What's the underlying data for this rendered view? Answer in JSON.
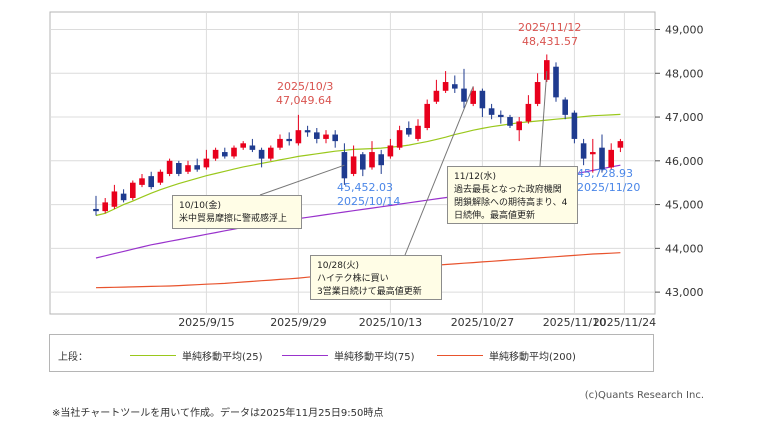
{
  "chart_data": {
    "type": "candlestick",
    "y_ticks": [
      43000,
      44000,
      45000,
      46000,
      47000,
      48000,
      49000
    ],
    "y_tick_labels": [
      "43,000",
      "44,000",
      "45,000",
      "46,000",
      "47,000",
      "48,000",
      "49,000"
    ],
    "ylim": [
      42500,
      49400
    ],
    "x_tick_labels": [
      "2025/9/15",
      "2025/9/29",
      "2025/10/13",
      "2025/10/27",
      "2025/11/10",
      "2025/11/24"
    ],
    "candles": [
      {
        "o": 44900,
        "c": 44850,
        "h": 45200,
        "l": 44750
      },
      {
        "o": 44850,
        "c": 45050,
        "h": 45150,
        "l": 44800
      },
      {
        "o": 44950,
        "c": 45300,
        "h": 45450,
        "l": 44900
      },
      {
        "o": 45250,
        "c": 45100,
        "h": 45350,
        "l": 45050
      },
      {
        "o": 45150,
        "c": 45500,
        "h": 45550,
        "l": 45100
      },
      {
        "o": 45450,
        "c": 45600,
        "h": 45700,
        "l": 45400
      },
      {
        "o": 45650,
        "c": 45400,
        "h": 45750,
        "l": 45350
      },
      {
        "o": 45500,
        "c": 45750,
        "h": 45800,
        "l": 45450
      },
      {
        "o": 45700,
        "c": 46000,
        "h": 46050,
        "l": 45650
      },
      {
        "o": 45950,
        "c": 45700,
        "h": 46000,
        "l": 45650
      },
      {
        "o": 45750,
        "c": 45900,
        "h": 46000,
        "l": 45700
      },
      {
        "o": 45900,
        "c": 45800,
        "h": 46050,
        "l": 45750
      },
      {
        "o": 45850,
        "c": 46050,
        "h": 46250,
        "l": 45800
      },
      {
        "o": 46050,
        "c": 46250,
        "h": 46300,
        "l": 46000
      },
      {
        "o": 46200,
        "c": 46100,
        "h": 46300,
        "l": 46050
      },
      {
        "o": 46100,
        "c": 46300,
        "h": 46350,
        "l": 46050
      },
      {
        "o": 46300,
        "c": 46400,
        "h": 46450,
        "l": 46250
      },
      {
        "o": 46350,
        "c": 46250,
        "h": 46500,
        "l": 46200
      },
      {
        "o": 46250,
        "c": 46050,
        "h": 46300,
        "l": 45850
      },
      {
        "o": 46050,
        "c": 46300,
        "h": 46350,
        "l": 46000
      },
      {
        "o": 46300,
        "c": 46500,
        "h": 46600,
        "l": 46250
      },
      {
        "o": 46500,
        "c": 46450,
        "h": 46650,
        "l": 46350
      },
      {
        "o": 46400,
        "c": 46700,
        "h": 47050,
        "l": 46350
      },
      {
        "o": 46700,
        "c": 46650,
        "h": 46800,
        "l": 46550
      },
      {
        "o": 46650,
        "c": 46500,
        "h": 46750,
        "l": 46400
      },
      {
        "o": 46500,
        "c": 46600,
        "h": 46700,
        "l": 46400
      },
      {
        "o": 46600,
        "c": 46450,
        "h": 46700,
        "l": 46300
      },
      {
        "o": 46200,
        "c": 45600,
        "h": 46400,
        "l": 45450
      },
      {
        "o": 45700,
        "c": 46100,
        "h": 46350,
        "l": 45650
      },
      {
        "o": 46150,
        "c": 45800,
        "h": 46200,
        "l": 45650
      },
      {
        "o": 45850,
        "c": 46200,
        "h": 46450,
        "l": 45800
      },
      {
        "o": 46150,
        "c": 45900,
        "h": 46250,
        "l": 45700
      },
      {
        "o": 46100,
        "c": 46350,
        "h": 46500,
        "l": 46050
      },
      {
        "o": 46300,
        "c": 46700,
        "h": 46800,
        "l": 46250
      },
      {
        "o": 46750,
        "c": 46600,
        "h": 46900,
        "l": 46550
      },
      {
        "o": 46500,
        "c": 46800,
        "h": 46950,
        "l": 46450
      },
      {
        "o": 46750,
        "c": 47300,
        "h": 47400,
        "l": 46700
      },
      {
        "o": 47350,
        "c": 47600,
        "h": 47850,
        "l": 47300
      },
      {
        "o": 47600,
        "c": 47800,
        "h": 48050,
        "l": 47550
      },
      {
        "o": 47750,
        "c": 47650,
        "h": 47950,
        "l": 47550
      },
      {
        "o": 47650,
        "c": 47350,
        "h": 48100,
        "l": 47200
      },
      {
        "o": 47300,
        "c": 47600,
        "h": 47700,
        "l": 47250
      },
      {
        "o": 47600,
        "c": 47200,
        "h": 47650,
        "l": 47000
      },
      {
        "o": 47200,
        "c": 47050,
        "h": 47300,
        "l": 46950
      },
      {
        "o": 47050,
        "c": 47000,
        "h": 47150,
        "l": 46850
      },
      {
        "o": 47000,
        "c": 46800,
        "h": 47050,
        "l": 46750
      },
      {
        "o": 46700,
        "c": 46900,
        "h": 47000,
        "l": 46450
      },
      {
        "o": 46900,
        "c": 47300,
        "h": 47500,
        "l": 46850
      },
      {
        "o": 47300,
        "c": 47800,
        "h": 48000,
        "l": 47250
      },
      {
        "o": 47850,
        "c": 48300,
        "h": 48430,
        "l": 47800
      },
      {
        "o": 48150,
        "c": 47450,
        "h": 48250,
        "l": 47350
      },
      {
        "o": 47400,
        "c": 47050,
        "h": 47450,
        "l": 46950
      },
      {
        "o": 47100,
        "c": 46500,
        "h": 47150,
        "l": 46400
      },
      {
        "o": 46400,
        "c": 46050,
        "h": 46500,
        "l": 45900
      },
      {
        "o": 46150,
        "c": 46200,
        "h": 46500,
        "l": 45730
      },
      {
        "o": 46300,
        "c": 45800,
        "h": 46600,
        "l": 45730
      },
      {
        "o": 45850,
        "c": 46250,
        "h": 46400,
        "l": 45800
      },
      {
        "o": 46300,
        "c": 46450,
        "h": 46500,
        "l": 46200
      }
    ],
    "series": [
      {
        "name": "単純移動平均(25)",
        "color": "#9ac81c",
        "values": [
          44750,
          44800,
          44900,
          45000,
          45080,
          45170,
          45260,
          45340,
          45410,
          45480,
          45540,
          45600,
          45660,
          45710,
          45760,
          45810,
          45860,
          45900,
          45940,
          45980,
          46020,
          46060,
          46100,
          46130,
          46160,
          46190,
          46220,
          46240,
          46260,
          46270,
          46280,
          46290,
          46310,
          46330,
          46360,
          46400,
          46440,
          46490,
          46540,
          46600,
          46650,
          46700,
          46740,
          46780,
          46810,
          46840,
          46870,
          46890,
          46910,
          46930,
          46950,
          46970,
          46990,
          47010,
          47030,
          47040,
          47050,
          47060
        ]
      },
      {
        "name": "単純移動平均(75)",
        "color": "#9933cc",
        "values": [
          43780,
          43830,
          43880,
          43930,
          43980,
          44030,
          44080,
          44120,
          44160,
          44200,
          44240,
          44280,
          44320,
          44360,
          44400,
          44440,
          44480,
          44520,
          44560,
          44590,
          44620,
          44650,
          44680,
          44710,
          44740,
          44770,
          44800,
          44830,
          44860,
          44890,
          44920,
          44950,
          44980,
          45010,
          45040,
          45070,
          45100,
          45130,
          45160,
          45190,
          45220,
          45260,
          45300,
          45340,
          45380,
          45420,
          45460,
          45500,
          45540,
          45580,
          45620,
          45660,
          45700,
          45740,
          45780,
          45820,
          45860,
          45900
        ]
      },
      {
        "name": "単純移動平均(200)",
        "color": "#e8532d",
        "values": [
          43100,
          43105,
          43110,
          43115,
          43120,
          43125,
          43130,
          43135,
          43140,
          43150,
          43160,
          43170,
          43180,
          43190,
          43200,
          43215,
          43230,
          43245,
          43260,
          43275,
          43290,
          43305,
          43320,
          43340,
          43360,
          43380,
          43400,
          43420,
          43440,
          43460,
          43480,
          43500,
          43520,
          43540,
          43560,
          43580,
          43600,
          43615,
          43630,
          43645,
          43660,
          43675,
          43690,
          43705,
          43720,
          43735,
          43750,
          43765,
          43780,
          43795,
          43810,
          43825,
          43840,
          43855,
          43870,
          43880,
          43890,
          43900
        ]
      }
    ],
    "annotations": {
      "high1": {
        "date": "2025/10/3",
        "value": "47,049.64"
      },
      "high2": {
        "date": "2025/11/12",
        "value": "48,431.57"
      },
      "low1": {
        "value": "45,452.03",
        "date": "2025/10/14"
      },
      "low2": {
        "value": "45,728.93",
        "date": "2025/11/20"
      }
    },
    "callouts": [
      {
        "lines": [
          "10/10(金)",
          "米中貿易摩擦に警戒感浮上"
        ]
      },
      {
        "lines": [
          "10/28(火)",
          "ハイテク株に買い",
          "3営業日続けて最高値更新"
        ]
      },
      {
        "lines": [
          "11/12(水)",
          "過去最長となった政府機関",
          "閉鎖解除への期待高まり、4",
          "日続伸。最高値更新"
        ]
      }
    ],
    "legend": {
      "prefix": "上段：",
      "items": [
        {
          "label": "単純移動平均(25)",
          "color": "#9ac81c"
        },
        {
          "label": "単純移動平均(75)",
          "color": "#9933cc"
        },
        {
          "label": "単純移動平均(200)",
          "color": "#e8532d"
        }
      ]
    },
    "colors": {
      "up": "#e8001c",
      "down": "#1f3b8f",
      "grid": "#dcdcdc"
    }
  },
  "credit": "(c)Quants Research Inc.",
  "footnote": "※当社チャートツールを用いて作成。データは2025年11月25日9:50時点"
}
